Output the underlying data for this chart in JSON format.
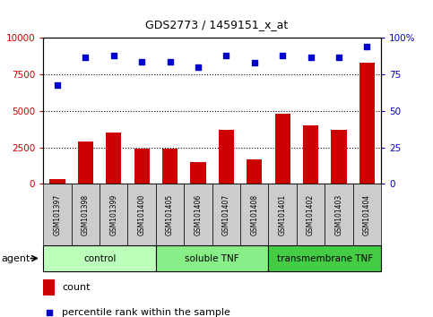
{
  "title": "GDS2773 / 1459151_x_at",
  "samples": [
    "GSM101397",
    "GSM101398",
    "GSM101399",
    "GSM101400",
    "GSM101405",
    "GSM101406",
    "GSM101407",
    "GSM101408",
    "GSM101401",
    "GSM101402",
    "GSM101403",
    "GSM101404"
  ],
  "counts": [
    300,
    2900,
    3500,
    2400,
    2400,
    1500,
    3700,
    1700,
    4800,
    4000,
    3700,
    8300
  ],
  "percentiles": [
    68,
    87,
    88,
    84,
    84,
    80,
    88,
    83,
    88,
    87,
    87,
    94
  ],
  "bar_color": "#cc0000",
  "dot_color": "#0000cc",
  "groups": [
    {
      "label": "control",
      "start": 0,
      "end": 4,
      "color": "#bbffbb"
    },
    {
      "label": "soluble TNF",
      "start": 4,
      "end": 8,
      "color": "#88ee88"
    },
    {
      "label": "transmembrane TNF",
      "start": 8,
      "end": 12,
      "color": "#44cc44"
    }
  ],
  "ylim_left": [
    0,
    10000
  ],
  "ylim_right": [
    0,
    100
  ],
  "yticks_left": [
    0,
    2500,
    5000,
    7500,
    10000
  ],
  "ytick_labels_left": [
    "0",
    "2500",
    "5000",
    "7500",
    "10000"
  ],
  "yticks_right": [
    0,
    25,
    50,
    75,
    100
  ],
  "ytick_labels_right": [
    "0",
    "25",
    "50",
    "75",
    "100%"
  ],
  "grid_lines": [
    2500,
    5000,
    7500
  ],
  "legend_count_label": "count",
  "legend_pct_label": "percentile rank within the sample",
  "agent_label": "agent",
  "tick_bg_color": "#cccccc",
  "plot_bg": "#ffffff"
}
